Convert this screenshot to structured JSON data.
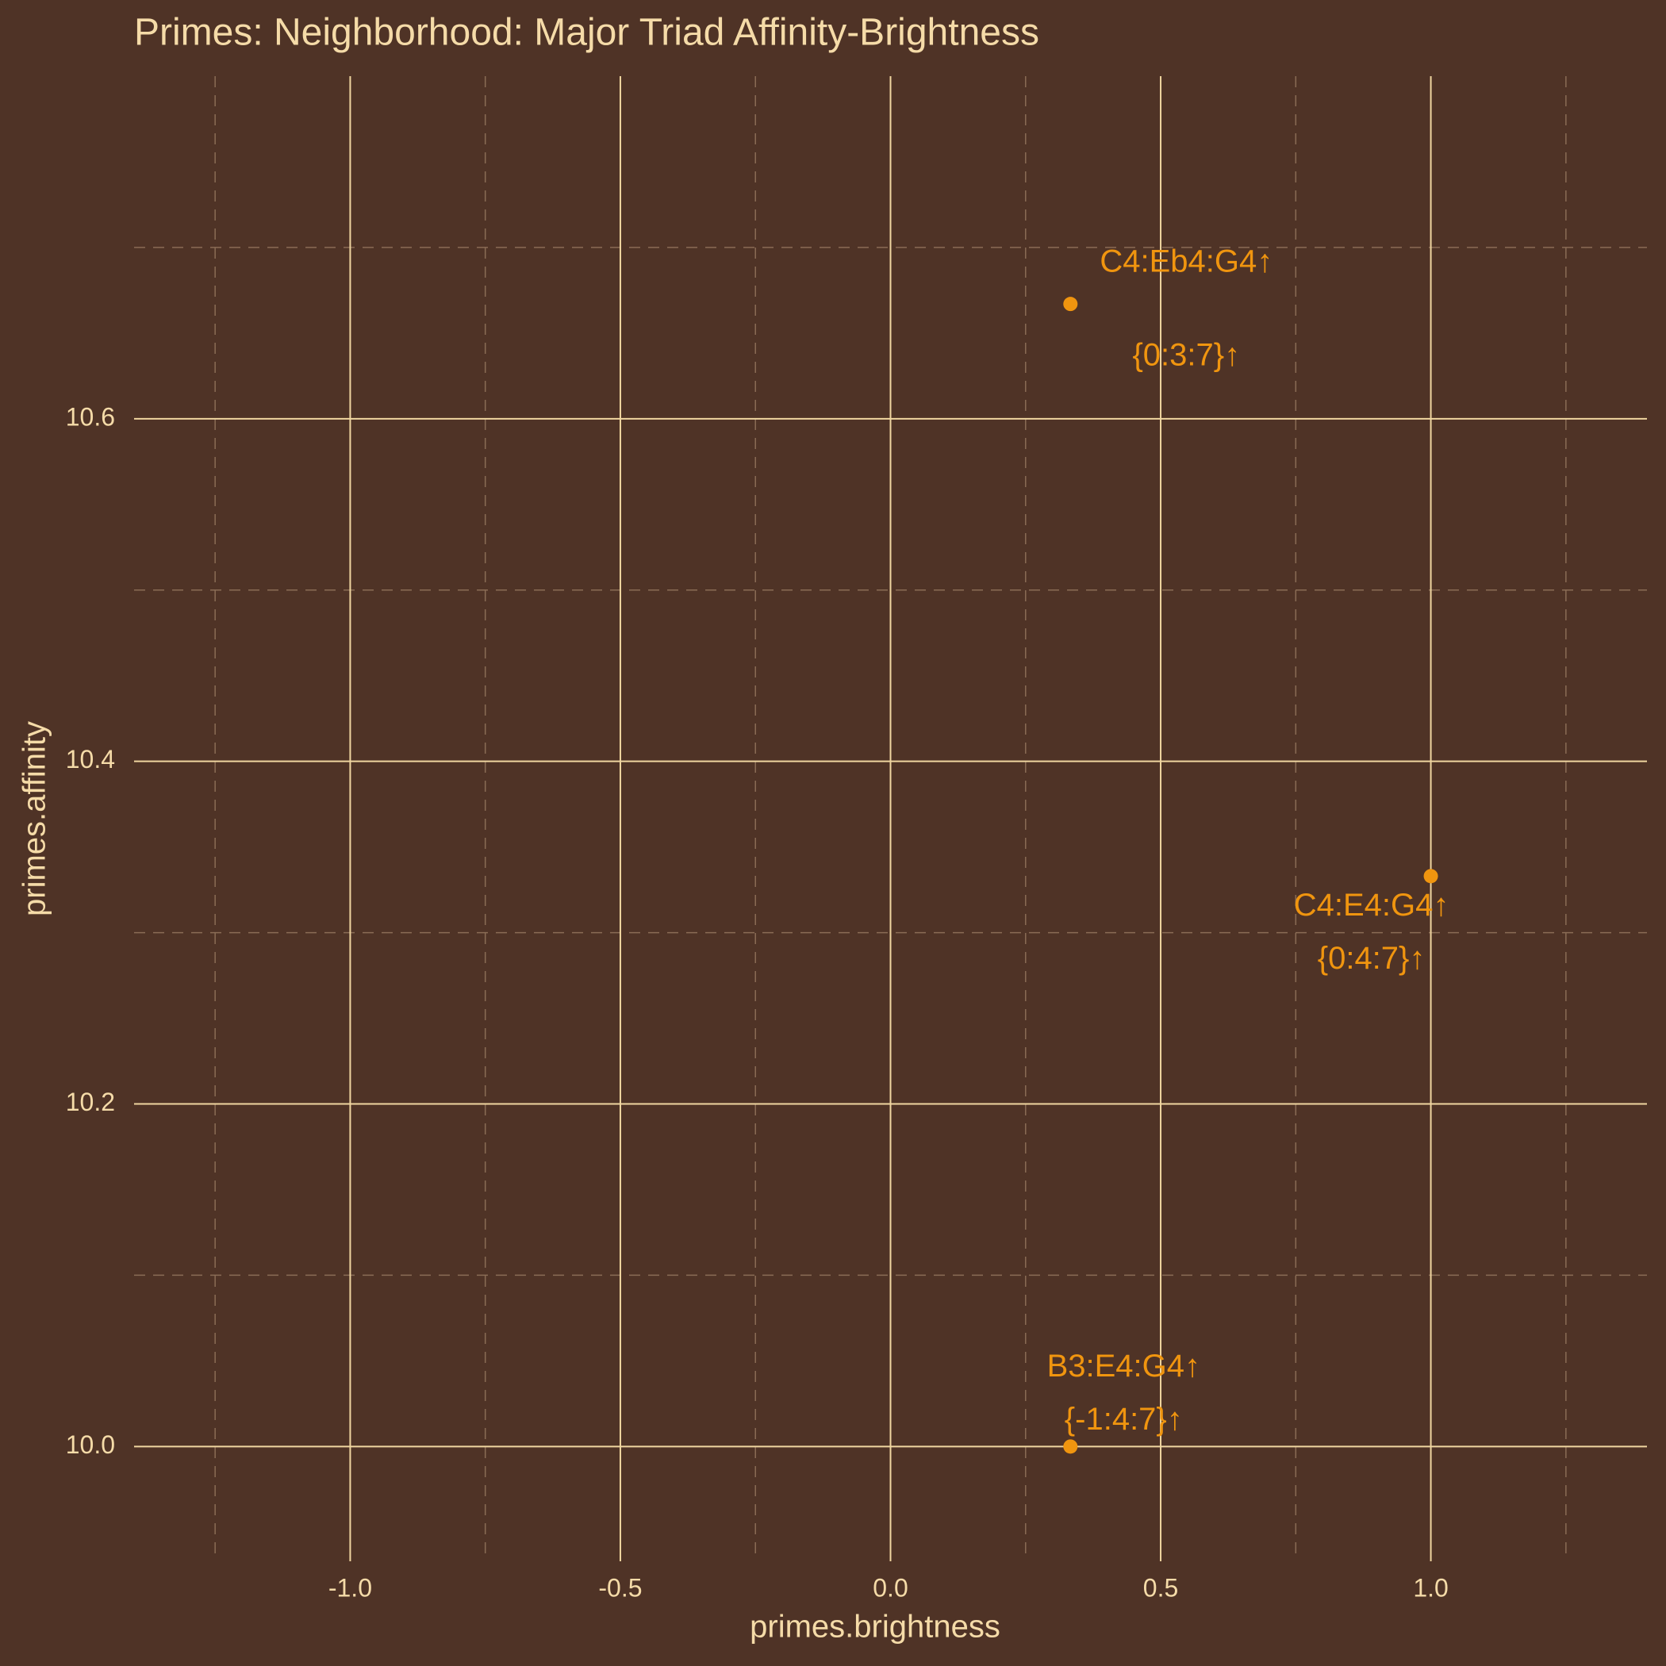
{
  "chart_data": {
    "type": "scatter",
    "title": "Primes: Neighborhood: Major Triad Affinity-Brightness",
    "x_label": "primes.brightness",
    "y_label": "primes.affinity",
    "series": [
      {
        "color": "#f0950f",
        "x": [
          0.333,
          1.0,
          0.333
        ],
        "values": [
          10.667,
          10.333,
          10.0
        ],
        "labels": [
          "C4:Eb4:G4↑",
          "C4:E4:G4↑",
          "B3:E4:G4↑"
        ],
        "sublabels": [
          "{0:3:7}↑",
          "{0:4:7}↑",
          "{-1:4:7}↑"
        ]
      }
    ],
    "xlim": [
      -1.4,
      1.4
    ],
    "ylim": [
      9.933,
      10.8
    ],
    "xticks": [
      {
        "value": -1,
        "label": "-1.0"
      },
      {
        "value": -0.5,
        "label": "-0.5"
      },
      {
        "value": 0,
        "label": "0.0"
      },
      {
        "value": 0.5,
        "label": "0.5"
      },
      {
        "value": 1,
        "label": "1.0"
      }
    ],
    "yticks": [
      {
        "value": 10,
        "label": "10.0"
      },
      10.2,
      10.4,
      10.6
    ],
    "xminor": [
      -1.25,
      -0.75,
      -0.25,
      0.25,
      0.75,
      1.25
    ],
    "yminor": [
      10.1,
      10.3,
      10.5,
      10.7
    ],
    "grid": true
  }
}
